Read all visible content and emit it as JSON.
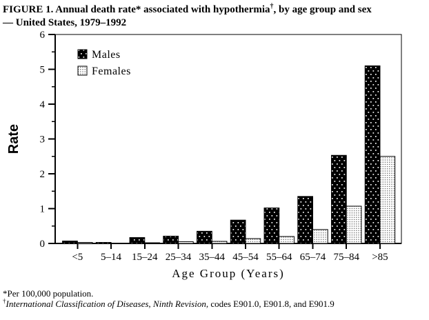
{
  "title": {
    "line1_pre": "FIGURE 1. Annual death rate* associated with hypothermia",
    "dagger": "†",
    "line1_post": ", by age group and sex",
    "line2": "— United States, 1979–1992"
  },
  "chart_data": {
    "type": "bar",
    "title": "Annual death rate associated with hypothermia, by age group and sex — United States, 1979–1992",
    "categories": [
      "<5",
      "5–14",
      "15–24",
      "25–34",
      "35–44",
      "45–54",
      "55–64",
      "65–74",
      "75–84",
      ">85"
    ],
    "series": [
      {
        "name": "Males",
        "pattern": "black-with-white-dots",
        "values": [
          0.07,
          0.03,
          0.17,
          0.21,
          0.35,
          0.67,
          1.02,
          1.35,
          2.53,
          5.1
        ]
      },
      {
        "name": "Females",
        "pattern": "white-with-black-dots",
        "values": [
          0.03,
          0.01,
          0.02,
          0.05,
          0.06,
          0.14,
          0.2,
          0.4,
          1.07,
          2.5
        ]
      }
    ],
    "xlabel": "Age Group (Years)",
    "ylabel": "Rate",
    "ylim": [
      0,
      6
    ],
    "y_major_ticks": [
      0,
      1,
      2,
      3,
      4,
      5,
      6
    ],
    "y_minor_step": 0.5,
    "grid": false,
    "legend_position": "top-left-inside"
  },
  "footnotes": {
    "line1": "*Per 100,000 population.",
    "dagger": "†",
    "line2_italic": "International Classification of Diseases, Ninth Revision",
    "line2_rest": ", codes E901.0, E901.8, and E901.9"
  },
  "colors": {
    "foreground": "#000000",
    "background": "#ffffff"
  }
}
